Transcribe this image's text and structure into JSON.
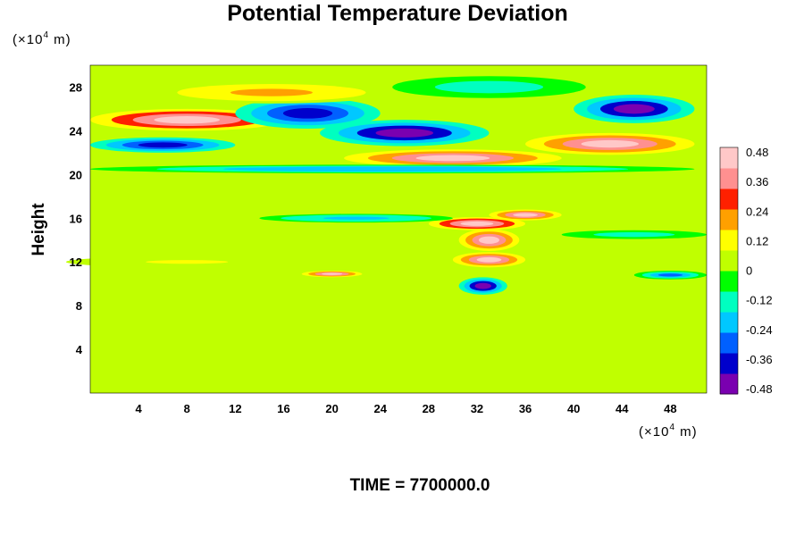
{
  "chart_data": {
    "type": "heatmap",
    "title": "Potential Temperature Deviation",
    "ylabel": "Height",
    "xlabel": "",
    "x_unit": {
      "prefix": "(×10",
      "exp": "4",
      "suffix": " m)"
    },
    "y_unit": {
      "prefix": "(×10",
      "exp": "4",
      "suffix": " m)"
    },
    "xlim": [
      0,
      51
    ],
    "ylim": [
      0,
      30
    ],
    "x_ticks": [
      4,
      8,
      12,
      16,
      20,
      24,
      28,
      32,
      36,
      40,
      44,
      48
    ],
    "y_ticks": [
      4,
      8,
      12,
      16,
      20,
      24,
      28
    ],
    "colorbar": {
      "range": [
        -0.5,
        0.5
      ],
      "ticks": [
        "0.48",
        "0.36",
        "0.24",
        "0.12",
        "0",
        "-0.12",
        "-0.24",
        "-0.36",
        "-0.48"
      ],
      "colors": [
        "#7a00b0",
        "#0000cc",
        "#0060ff",
        "#00c8ff",
        "#00ffc0",
        "#00ff00",
        "#c0ff00",
        "#ffff00",
        "#ffa000",
        "#ff2000",
        "#ff9090",
        "#ffc8c8"
      ]
    },
    "background_value": 0.02,
    "features": [
      {
        "x": 8,
        "y": 25,
        "rx": 8,
        "ry": 1.0,
        "v": 0.5
      },
      {
        "x": 6,
        "y": 22.7,
        "rx": 6,
        "ry": 0.7,
        "v": -0.4
      },
      {
        "x": 18,
        "y": 25.6,
        "rx": 6,
        "ry": 1.4,
        "v": -0.4
      },
      {
        "x": 26,
        "y": 23.8,
        "rx": 7,
        "ry": 1.2,
        "v": -0.5
      },
      {
        "x": 30,
        "y": 21.5,
        "rx": 9,
        "ry": 0.8,
        "v": 0.48
      },
      {
        "x": 43,
        "y": 22.8,
        "rx": 7,
        "ry": 1.0,
        "v": 0.48
      },
      {
        "x": 45,
        "y": 26,
        "rx": 5,
        "ry": 1.3,
        "v": -0.45
      },
      {
        "x": 15,
        "y": 27.5,
        "rx": 10,
        "ry": 1.0,
        "v": 0.2
      },
      {
        "x": 33,
        "y": 28,
        "rx": 8,
        "ry": 1.0,
        "v": -0.15
      },
      {
        "x": 25,
        "y": 20.5,
        "rx": 25,
        "ry": 0.4,
        "v": -0.25
      },
      {
        "x": 32,
        "y": 15.5,
        "rx": 4,
        "ry": 0.6,
        "v": 0.5
      },
      {
        "x": 36,
        "y": 16.3,
        "rx": 3,
        "ry": 0.5,
        "v": 0.45
      },
      {
        "x": 33,
        "y": 14,
        "rx": 2.5,
        "ry": 1.0,
        "v": 0.48
      },
      {
        "x": 33,
        "y": 12.2,
        "rx": 3,
        "ry": 0.7,
        "v": 0.45
      },
      {
        "x": 32.5,
        "y": 9.8,
        "rx": 2,
        "ry": 0.8,
        "v": -0.45
      },
      {
        "x": 20,
        "y": 10.9,
        "rx": 2.5,
        "ry": 0.3,
        "v": 0.45
      },
      {
        "x": 22,
        "y": 16,
        "rx": 8,
        "ry": 0.4,
        "v": -0.22
      },
      {
        "x": 48,
        "y": 10.8,
        "rx": 3,
        "ry": 0.4,
        "v": -0.3
      },
      {
        "x": 45,
        "y": 14.5,
        "rx": 6,
        "ry": 0.4,
        "v": -0.15
      },
      {
        "x": 8,
        "y": 12,
        "rx": 10,
        "ry": 0.5,
        "v": 0.1
      }
    ]
  },
  "footer": {
    "time_label": "TIME = 7700000.0"
  }
}
